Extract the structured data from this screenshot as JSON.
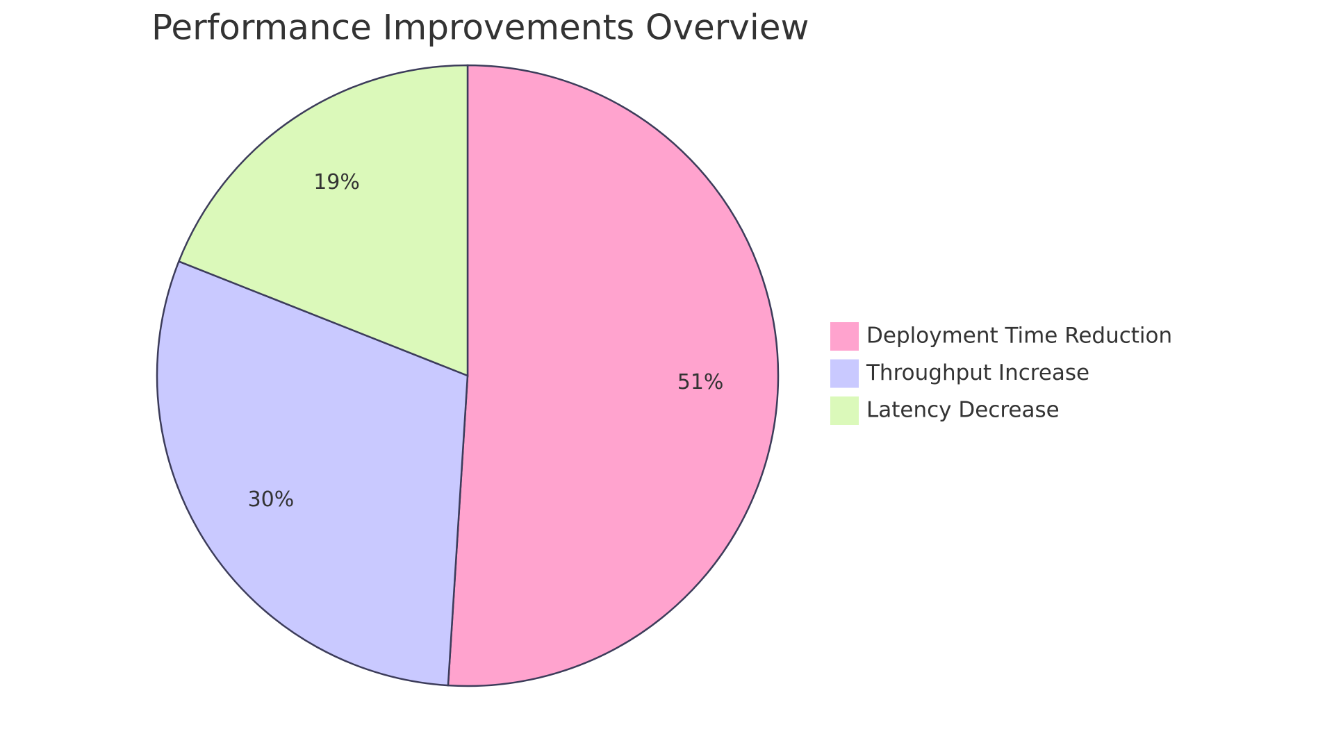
{
  "chart_data": {
    "type": "pie",
    "title": "Performance Improvements Overview",
    "categories": [
      "Deployment Time Reduction",
      "Throughput Increase",
      "Latency Decrease"
    ],
    "values": [
      51,
      30,
      19
    ],
    "value_labels": [
      "51%",
      "30%",
      "19%"
    ],
    "colors": [
      "#ffa3ce",
      "#c9c9ff",
      "#dbf9ba"
    ],
    "legend": "right"
  }
}
